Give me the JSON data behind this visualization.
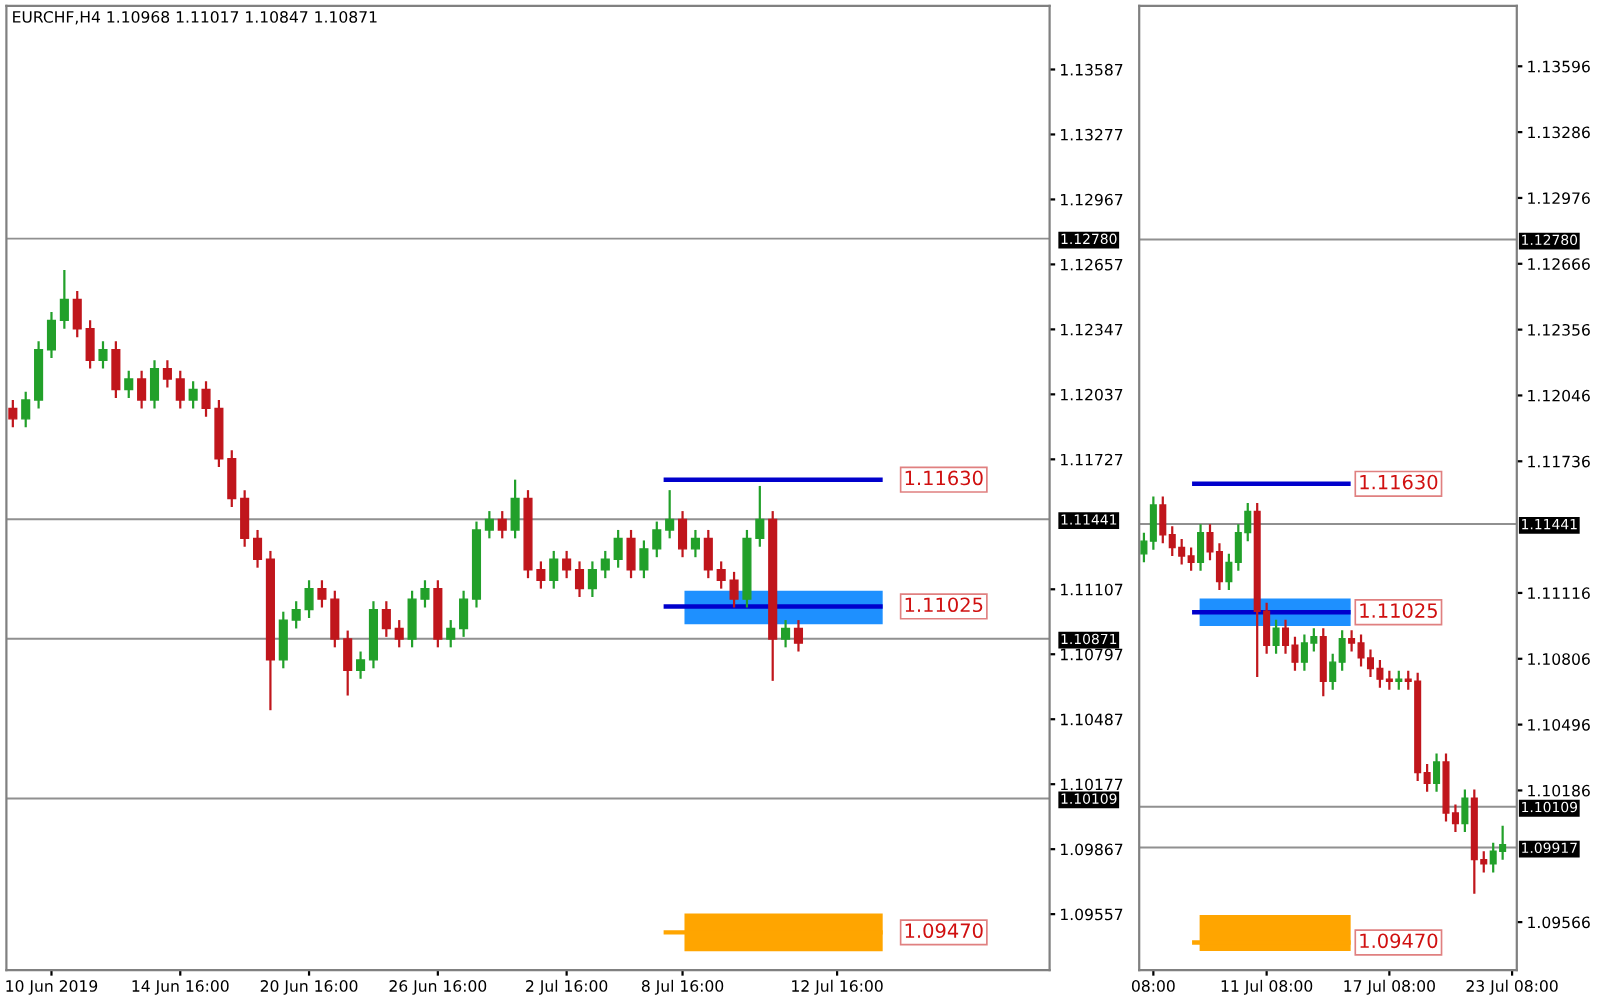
{
  "chart_data": [
    {
      "type": "candlestick",
      "title": "EURCHF,H4 1.10968 1.11017 1.10847 1.10871",
      "categories": [
        null,
        null,
        null,
        "10 Jun 2019",
        null,
        null,
        null,
        null,
        null,
        null,
        null,
        null,
        null,
        "14 Jun 16:00",
        null,
        null,
        null,
        null,
        null,
        null,
        null,
        null,
        null,
        "20 Jun 16:00",
        null,
        null,
        null,
        null,
        null,
        null,
        null,
        null,
        null,
        "26 Jun 16:00",
        null,
        null,
        null,
        null,
        null,
        null,
        null,
        null,
        null,
        "2 Jul 16:00",
        null,
        null,
        null,
        null,
        null,
        null,
        null,
        null,
        "8 Jul 16:00",
        null,
        null,
        null,
        null,
        null,
        null,
        null,
        null,
        null,
        null,
        null,
        "12 Jul 16:00",
        null,
        null,
        null,
        null,
        null,
        null,
        null,
        null,
        null,
        null,
        null,
        null,
        null,
        null,
        null,
        null
      ],
      "ohlc": [
        [
          1.1197,
          1.1201,
          1.1188,
          1.1192
        ],
        [
          1.1192,
          1.1205,
          1.1188,
          1.1201
        ],
        [
          1.1201,
          1.1229,
          1.1197,
          1.1225
        ],
        [
          1.1225,
          1.1243,
          1.1221,
          1.1239
        ],
        [
          1.1239,
          1.1263,
          1.1235,
          1.1249
        ],
        [
          1.1249,
          1.1253,
          1.1231,
          1.1235
        ],
        [
          1.1235,
          1.1239,
          1.1216,
          1.122
        ],
        [
          1.122,
          1.1229,
          1.1216,
          1.1225
        ],
        [
          1.1225,
          1.1229,
          1.1202,
          1.1206
        ],
        [
          1.1206,
          1.1215,
          1.1202,
          1.1211
        ],
        [
          1.1211,
          1.1215,
          1.1197,
          1.1201
        ],
        [
          1.1201,
          1.122,
          1.1197,
          1.1216
        ],
        [
          1.1216,
          1.122,
          1.1207,
          1.1211
        ],
        [
          1.1211,
          1.1215,
          1.1197,
          1.1201
        ],
        [
          1.1201,
          1.121,
          1.1197,
          1.1206
        ],
        [
          1.1206,
          1.121,
          1.1193,
          1.1197
        ],
        [
          1.1197,
          1.1201,
          1.1169,
          1.1173
        ],
        [
          1.1173,
          1.1177,
          1.115,
          1.1154
        ],
        [
          1.1154,
          1.1158,
          1.1131,
          1.1135
        ],
        [
          1.1135,
          1.1139,
          1.1121,
          1.1125
        ],
        [
          1.1125,
          1.1129,
          1.1053,
          1.1077
        ],
        [
          1.1077,
          1.11,
          1.1073,
          1.1096
        ],
        [
          1.1096,
          1.1105,
          1.1092,
          1.1101
        ],
        [
          1.1101,
          1.1115,
          1.1097,
          1.1111
        ],
        [
          1.1111,
          1.1115,
          1.1102,
          1.1106
        ],
        [
          1.1106,
          1.111,
          1.1083,
          1.1087
        ],
        [
          1.1087,
          1.1091,
          1.106,
          1.1072
        ],
        [
          1.1072,
          1.1081,
          1.1068,
          1.1077
        ],
        [
          1.1077,
          1.1105,
          1.1073,
          1.1101
        ],
        [
          1.1101,
          1.1105,
          1.1088,
          1.1092
        ],
        [
          1.1092,
          1.1096,
          1.1083,
          1.1087
        ],
        [
          1.1087,
          1.111,
          1.1083,
          1.1106
        ],
        [
          1.1106,
          1.1115,
          1.1102,
          1.1111
        ],
        [
          1.1111,
          1.1115,
          1.1083,
          1.1087
        ],
        [
          1.1087,
          1.1096,
          1.1083,
          1.1092
        ],
        [
          1.1092,
          1.111,
          1.1088,
          1.1106
        ],
        [
          1.1106,
          1.1143,
          1.1102,
          1.1139
        ],
        [
          1.1139,
          1.1148,
          1.1135,
          1.1144
        ],
        [
          1.1144,
          1.1148,
          1.1135,
          1.1139
        ],
        [
          1.1139,
          1.1163,
          1.1135,
          1.1154
        ],
        [
          1.1154,
          1.1158,
          1.1116,
          1.112
        ],
        [
          1.112,
          1.1124,
          1.1111,
          1.1115
        ],
        [
          1.1115,
          1.1129,
          1.1111,
          1.1125
        ],
        [
          1.1125,
          1.1129,
          1.1116,
          1.112
        ],
        [
          1.112,
          1.1124,
          1.1107,
          1.1111
        ],
        [
          1.1111,
          1.1124,
          1.1107,
          1.112
        ],
        [
          1.112,
          1.1129,
          1.1116,
          1.1125
        ],
        [
          1.1125,
          1.1139,
          1.1121,
          1.1135
        ],
        [
          1.1135,
          1.1139,
          1.1116,
          1.112
        ],
        [
          1.112,
          1.1134,
          1.1116,
          1.113
        ],
        [
          1.113,
          1.1143,
          1.1126,
          1.1139
        ],
        [
          1.1139,
          1.1158,
          1.1135,
          1.1144
        ],
        [
          1.1144,
          1.1148,
          1.1126,
          1.113
        ],
        [
          1.113,
          1.1139,
          1.1126,
          1.1135
        ],
        [
          1.1135,
          1.1139,
          1.1116,
          1.112
        ],
        [
          1.112,
          1.1124,
          1.1111,
          1.1115
        ],
        [
          1.1115,
          1.1119,
          1.1102,
          1.1106
        ],
        [
          1.1106,
          1.1139,
          1.1102,
          1.1135
        ],
        [
          1.1135,
          1.116,
          1.1131,
          1.1144
        ],
        [
          1.1144,
          1.1148,
          1.1067,
          1.1087
        ],
        [
          1.1087,
          1.1096,
          1.1083,
          1.1092
        ],
        [
          1.1092,
          1.1096,
          1.1081,
          1.1085
        ],
        null,
        null,
        null,
        null,
        null,
        null,
        null,
        null,
        null,
        null,
        null,
        null,
        null,
        null,
        null,
        null,
        null,
        null,
        null
      ],
      "ylim": [
        1.0929,
        1.1389
      ],
      "yticks": [
        1.13587,
        1.13277,
        1.12967,
        1.12657,
        1.12347,
        1.12037,
        1.11727,
        1.11107,
        1.10797,
        1.10487,
        1.10177,
        1.09867,
        1.09557
      ],
      "ref_lines": [
        {
          "axis": "y",
          "value": 1.1278,
          "label": "1.12780"
        },
        {
          "axis": "y",
          "value": 1.11441,
          "label": "1.11441"
        },
        {
          "axis": "y",
          "value": 1.10871,
          "label": "1.10871"
        },
        {
          "axis": "y",
          "value": 1.10109,
          "label": "1.10109"
        },
        {
          "axis": "y",
          "value": 1.1163,
          "label": "1.11630",
          "color": "#0000cc"
        },
        {
          "axis": "y",
          "value": 1.11025,
          "label": "1.11025",
          "color": "#0000cc"
        },
        {
          "axis": "y",
          "value": 1.0947,
          "label": "1.09470",
          "color": "#ffa500"
        }
      ],
      "bands": [
        {
          "axis": "y",
          "from": 1.1094,
          "to": 1.111,
          "color": "#1e90ff"
        },
        {
          "axis": "y",
          "from": 1.0938,
          "to": 1.0956,
          "color": "#ffa500"
        }
      ],
      "grid": false
    },
    {
      "type": "candlestick",
      "categories": [
        null,
        "08:00",
        null,
        null,
        null,
        null,
        null,
        null,
        null,
        null,
        null,
        null,
        null,
        "11 Jul 08:00",
        null,
        null,
        null,
        null,
        null,
        null,
        null,
        null,
        null,
        null,
        null,
        null,
        "17 Jul 08:00",
        null,
        null,
        null,
        null,
        null,
        null,
        null,
        null,
        null,
        null,
        null,
        null,
        "23 Jul 08:00"
      ],
      "ohlc": [
        [
          1.113,
          1.114,
          1.1126,
          1.1136
        ],
        [
          1.1136,
          1.1157,
          1.1132,
          1.1153
        ],
        [
          1.1153,
          1.1157,
          1.1135,
          1.1139
        ],
        [
          1.1139,
          1.1143,
          1.1129,
          1.1133
        ],
        [
          1.1133,
          1.1137,
          1.1125,
          1.1129
        ],
        [
          1.1129,
          1.1133,
          1.1122,
          1.1126
        ],
        [
          1.1126,
          1.1144,
          1.1122,
          1.114
        ],
        [
          1.114,
          1.1144,
          1.1127,
          1.1131
        ],
        [
          1.1131,
          1.1135,
          1.1113,
          1.1117
        ],
        [
          1.1117,
          1.113,
          1.1113,
          1.1126
        ],
        [
          1.1126,
          1.1144,
          1.1122,
          1.114
        ],
        [
          1.114,
          1.1154,
          1.1136,
          1.115
        ],
        [
          1.115,
          1.1154,
          1.1072,
          1.1103
        ],
        [
          1.1103,
          1.1107,
          1.1083,
          1.1087
        ],
        [
          1.1087,
          1.1099,
          1.1083,
          1.1095
        ],
        [
          1.1095,
          1.1099,
          1.1083,
          1.1087
        ],
        [
          1.1087,
          1.1091,
          1.1075,
          1.1079
        ],
        [
          1.1079,
          1.1092,
          1.1075,
          1.1088
        ],
        [
          1.1088,
          1.1095,
          1.1084,
          1.1091
        ],
        [
          1.1091,
          1.1095,
          1.1063,
          1.107
        ],
        [
          1.107,
          1.1083,
          1.1066,
          1.1079
        ],
        [
          1.1079,
          1.1094,
          1.1075,
          1.109
        ],
        [
          1.109,
          1.1094,
          1.1084,
          1.1088
        ],
        [
          1.1088,
          1.1092,
          1.1077,
          1.1081
        ],
        [
          1.1081,
          1.1085,
          1.1072,
          1.1076
        ],
        [
          1.1076,
          1.108,
          1.1067,
          1.1071
        ],
        [
          1.1071,
          1.1075,
          1.1066,
          1.107
        ],
        [
          1.107,
          1.1075,
          1.1066,
          1.1071
        ],
        [
          1.1071,
          1.1075,
          1.1066,
          1.107
        ],
        [
          1.107,
          1.1074,
          1.1023,
          1.1027
        ],
        [
          1.1027,
          1.1031,
          1.1018,
          1.1022
        ],
        [
          1.1022,
          1.1036,
          1.1018,
          1.1032
        ],
        [
          1.1032,
          1.1036,
          1.1004,
          1.1008
        ],
        [
          1.1008,
          1.1012,
          1.0999,
          1.1003
        ],
        [
          1.1003,
          1.1019,
          1.0999,
          1.1015
        ],
        [
          1.1015,
          1.1019,
          1.097,
          1.0986
        ],
        [
          1.0986,
          1.099,
          1.098,
          1.0984
        ],
        [
          1.0984,
          1.0994,
          1.098,
          1.099
        ],
        [
          1.099,
          1.1002,
          1.0986,
          1.0993
        ],
        null
      ],
      "ylim": [
        1.0934,
        1.1388
      ],
      "yticks": [
        1.13596,
        1.13286,
        1.12976,
        1.12666,
        1.12356,
        1.12046,
        1.11736,
        1.11116,
        1.10806,
        1.10496,
        1.10186,
        1.09566
      ],
      "ref_lines": [
        {
          "axis": "y",
          "value": 1.1278,
          "label": "1.12780"
        },
        {
          "axis": "y",
          "value": 1.11441,
          "label": "1.11441"
        },
        {
          "axis": "y",
          "value": 1.10109,
          "label": "1.10109"
        },
        {
          "axis": "y",
          "value": 1.09917,
          "label": "1.09917"
        },
        {
          "axis": "y",
          "value": 1.1163,
          "label": "1.11630",
          "color": "#0000cc"
        },
        {
          "axis": "y",
          "value": 1.11025,
          "label": "1.11025",
          "color": "#0000cc"
        },
        {
          "axis": "y",
          "value": 1.0947,
          "label": "1.09470",
          "color": "#ffa500"
        }
      ],
      "bands": [
        {
          "axis": "y",
          "from": 1.1096,
          "to": 1.1109,
          "color": "#1e90ff"
        },
        {
          "axis": "y",
          "from": 1.0943,
          "to": 1.096,
          "color": "#ffa500"
        }
      ],
      "grid": false
    }
  ]
}
